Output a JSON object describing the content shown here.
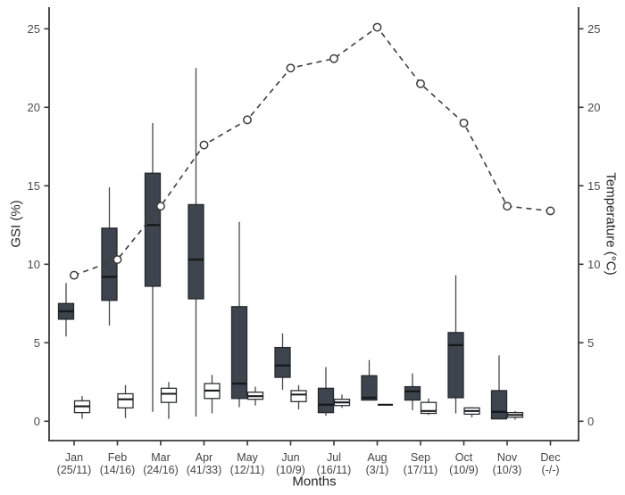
{
  "chart_data": {
    "type": "boxplot+line",
    "title": "",
    "xlabel": "Months",
    "ylabel_left": "GSI (%)",
    "ylabel_right": "Temperature (°C)",
    "ylim": [
      0,
      25
    ],
    "yticks": [
      0,
      5,
      10,
      15,
      20,
      25
    ],
    "grid": "off",
    "legend": "none",
    "categories": [
      "Jan",
      "Feb",
      "Mar",
      "Apr",
      "May",
      "Jun",
      "Jul",
      "Aug",
      "Sep",
      "Oct",
      "Nov",
      "Dec"
    ],
    "sample_sizes": [
      "(25/11)",
      "(14/16)",
      "(24/16)",
      "(41/33)",
      "(12/11)",
      "(10/9)",
      "(16/11)",
      "(3/1)",
      "(17/11)",
      "(10/9)",
      "(10/3)",
      "(-/-)"
    ],
    "colors": {
      "dark_box_fill": "#3e444d",
      "dark_box_stroke": "#24282d",
      "open_box_fill": "#ffffff",
      "open_box_stroke": "#2c3034",
      "median": "#171a1d",
      "whisker": "#44484c",
      "line": "#3d3d3d",
      "axis": "#383838",
      "tick_text": "#4c4c4c",
      "month_text": "#444444"
    },
    "boxplot_series": [
      {
        "name": "gsi-dark",
        "boxes": [
          {
            "min": 5.4,
            "q1": 6.5,
            "median": 7.0,
            "q3": 7.5,
            "max": 8.8
          },
          {
            "min": 6.1,
            "q1": 7.7,
            "median": 9.2,
            "q3": 12.3,
            "max": 14.9
          },
          {
            "min": 0.6,
            "q1": 8.6,
            "median": 12.5,
            "q3": 15.8,
            "max": 19.0
          },
          {
            "min": 0.3,
            "q1": 7.8,
            "median": 10.3,
            "q3": 13.8,
            "max": 22.5
          },
          {
            "min": 0.9,
            "q1": 1.45,
            "median": 2.4,
            "q3": 7.3,
            "max": 12.7
          },
          {
            "min": 2.0,
            "q1": 2.8,
            "median": 3.55,
            "q3": 4.7,
            "max": 5.6
          },
          {
            "min": 0.35,
            "q1": 0.55,
            "median": 1.05,
            "q3": 2.1,
            "max": 3.45
          },
          {
            "min": 1.35,
            "q1": 1.35,
            "median": 1.5,
            "q3": 2.9,
            "max": 3.9
          },
          {
            "min": 0.7,
            "q1": 1.35,
            "median": 1.9,
            "q3": 2.2,
            "max": 3.05
          },
          {
            "min": 0.5,
            "q1": 1.5,
            "median": 4.85,
            "q3": 5.65,
            "max": 9.3
          },
          {
            "min": 0.15,
            "q1": 0.15,
            "median": 0.6,
            "q3": 1.95,
            "max": 4.2
          },
          null
        ]
      },
      {
        "name": "gsi-open",
        "boxes": [
          {
            "min": 0.15,
            "q1": 0.55,
            "median": 0.95,
            "q3": 1.3,
            "max": 1.6
          },
          {
            "min": 0.2,
            "q1": 0.85,
            "median": 1.4,
            "q3": 1.75,
            "max": 2.3
          },
          {
            "min": 0.15,
            "q1": 1.2,
            "median": 1.75,
            "q3": 2.1,
            "max": 2.5
          },
          {
            "min": 0.5,
            "q1": 1.45,
            "median": 1.95,
            "q3": 2.4,
            "max": 2.95
          },
          {
            "min": 1.0,
            "q1": 1.4,
            "median": 1.6,
            "q3": 1.85,
            "max": 2.2
          },
          {
            "min": 0.75,
            "q1": 1.25,
            "median": 1.7,
            "q3": 1.95,
            "max": 2.3
          },
          {
            "min": 0.85,
            "q1": 1.0,
            "median": 1.2,
            "q3": 1.4,
            "max": 1.7
          },
          {
            "min": 1.05,
            "q1": 1.05,
            "median": 1.05,
            "q3": 1.05,
            "max": 1.05
          },
          {
            "min": 0.4,
            "q1": 0.5,
            "median": 0.65,
            "q3": 1.2,
            "max": 1.45
          },
          {
            "min": 0.25,
            "q1": 0.45,
            "median": 0.65,
            "q3": 0.85,
            "max": 0.9
          },
          {
            "min": 0.1,
            "q1": 0.25,
            "median": 0.4,
            "q3": 0.55,
            "max": 0.65
          },
          null
        ]
      }
    ],
    "line_series": {
      "name": "temperature",
      "style": "dashed",
      "marker": "open-circle",
      "values": [
        9.3,
        10.3,
        13.7,
        17.6,
        19.2,
        22.5,
        23.1,
        25.1,
        21.5,
        19.0,
        13.7,
        13.4
      ]
    }
  }
}
